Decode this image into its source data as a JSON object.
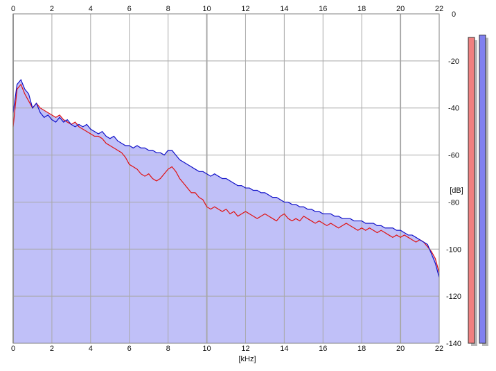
{
  "chart_data": {
    "type": "area",
    "xlabel": "[kHz]",
    "ylabel": "[dB]",
    "xlim": [
      0,
      22
    ],
    "ylim": [
      -140,
      0
    ],
    "x_ticks": [
      0,
      2,
      4,
      6,
      8,
      10,
      12,
      14,
      16,
      18,
      20,
      22
    ],
    "y_ticks": [
      0,
      -20,
      -40,
      -60,
      -80,
      -100,
      -120,
      -140
    ],
    "x_tick_labels": [
      "0",
      "2",
      "4",
      "6",
      "8",
      "10",
      "12",
      "14",
      "16",
      "18",
      "20",
      "22"
    ],
    "y_tick_labels": [
      "0",
      "-20",
      "-40",
      "-60",
      "-80",
      "-100",
      "-120",
      "-140"
    ],
    "grid": true,
    "x": [
      0.0,
      0.2,
      0.4,
      0.6,
      0.8,
      1.0,
      1.2,
      1.4,
      1.6,
      1.8,
      2.0,
      2.2,
      2.4,
      2.6,
      2.8,
      3.0,
      3.2,
      3.4,
      3.6,
      3.8,
      4.0,
      4.2,
      4.4,
      4.6,
      4.8,
      5.0,
      5.2,
      5.4,
      5.6,
      5.8,
      6.0,
      6.2,
      6.4,
      6.6,
      6.8,
      7.0,
      7.2,
      7.4,
      7.6,
      7.8,
      8.0,
      8.2,
      8.4,
      8.6,
      8.8,
      9.0,
      9.2,
      9.4,
      9.6,
      9.8,
      10.0,
      10.2,
      10.4,
      10.6,
      10.8,
      11.0,
      11.2,
      11.4,
      11.6,
      11.8,
      12.0,
      12.2,
      12.4,
      12.6,
      12.8,
      13.0,
      13.2,
      13.4,
      13.6,
      13.8,
      14.0,
      14.2,
      14.4,
      14.6,
      14.8,
      15.0,
      15.2,
      15.4,
      15.6,
      15.8,
      16.0,
      16.2,
      16.4,
      16.6,
      16.8,
      17.0,
      17.2,
      17.4,
      17.6,
      17.8,
      18.0,
      18.2,
      18.4,
      18.6,
      18.8,
      19.0,
      19.2,
      19.4,
      19.6,
      19.8,
      20.0,
      20.2,
      20.4,
      20.6,
      20.8,
      21.0,
      21.2,
      21.4,
      21.6,
      21.8,
      22.0
    ],
    "series": [
      {
        "color": "#e01010",
        "values": [
          -48,
          -32,
          -30,
          -34,
          -37,
          -40,
          -38,
          -40,
          -41,
          -42,
          -43,
          -44,
          -43,
          -45,
          -46,
          -47,
          -46,
          -48,
          -49,
          -50,
          -51,
          -52,
          -52,
          -53,
          -55,
          -56,
          -57,
          -58,
          -59,
          -61,
          -64,
          -65,
          -66,
          -68,
          -69,
          -68,
          -70,
          -71,
          -70,
          -68,
          -66,
          -65,
          -67,
          -70,
          -72,
          -74,
          -76,
          -76,
          -78,
          -79,
          -82,
          -83,
          -82,
          -83,
          -84,
          -83,
          -85,
          -84,
          -86,
          -85,
          -84,
          -85,
          -86,
          -87,
          -86,
          -85,
          -86,
          -87,
          -88,
          -86,
          -85,
          -87,
          -88,
          -87,
          -88,
          -86,
          -87,
          -88,
          -89,
          -88,
          -89,
          -90,
          -89,
          -90,
          -91,
          -90,
          -89,
          -90,
          -91,
          -92,
          -91,
          -92,
          -91,
          -92,
          -93,
          -92,
          -93,
          -94,
          -95,
          -94,
          -95,
          -94,
          -95,
          -96,
          -97,
          -96,
          -97,
          -99,
          -101,
          -104,
          -110
        ],
        "fill": "#c0c0f8"
      },
      {
        "color": "#1010c8",
        "values": [
          -42,
          -30,
          -28,
          -32,
          -34,
          -40,
          -38,
          -42,
          -44,
          -43,
          -45,
          -46,
          -44,
          -46,
          -45,
          -47,
          -48,
          -47,
          -48,
          -47,
          -49,
          -50,
          -51,
          -50,
          -52,
          -53,
          -52,
          -54,
          -55,
          -56,
          -56,
          -57,
          -56,
          -57,
          -57,
          -58,
          -58,
          -59,
          -59,
          -60,
          -58,
          -58,
          -60,
          -62,
          -63,
          -64,
          -65,
          -66,
          -67,
          -67,
          -68,
          -69,
          -68,
          -69,
          -70,
          -70,
          -71,
          -72,
          -73,
          -73,
          -74,
          -74,
          -75,
          -75,
          -76,
          -76,
          -77,
          -78,
          -78,
          -79,
          -80,
          -80,
          -81,
          -81,
          -82,
          -82,
          -83,
          -83,
          -84,
          -84,
          -85,
          -85,
          -85,
          -86,
          -86,
          -87,
          -87,
          -87,
          -88,
          -88,
          -88,
          -89,
          -89,
          -89,
          -90,
          -90,
          -91,
          -91,
          -91,
          -92,
          -92,
          -93,
          -94,
          -94,
          -95,
          -96,
          -97,
          -98,
          -102,
          -106,
          -112
        ]
      }
    ],
    "meters": [
      {
        "color": "#f08080",
        "value_db": -10
      },
      {
        "color": "#8080f0",
        "value_db": -9
      }
    ]
  }
}
